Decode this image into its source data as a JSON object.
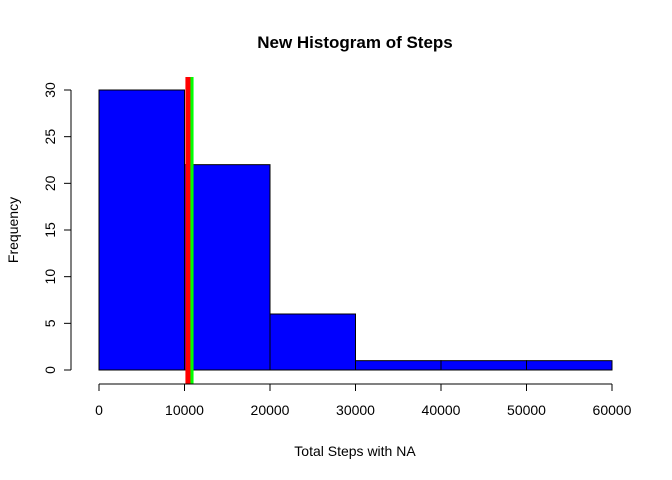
{
  "chart_data": {
    "type": "bar",
    "subtype": "histogram",
    "title": "New Histogram of Steps",
    "xlabel": "Total Steps with NA",
    "ylabel": "Frequency",
    "bins": [
      {
        "from": 0,
        "to": 10000,
        "count": 30
      },
      {
        "from": 10000,
        "to": 20000,
        "count": 22
      },
      {
        "from": 20000,
        "to": 30000,
        "count": 6
      },
      {
        "from": 30000,
        "to": 40000,
        "count": 1
      },
      {
        "from": 40000,
        "to": 50000,
        "count": 1
      },
      {
        "from": 50000,
        "to": 60000,
        "count": 1
      }
    ],
    "xlim": [
      0,
      60000
    ],
    "ylim": [
      0,
      30
    ],
    "x_ticks": [
      0,
      10000,
      20000,
      30000,
      40000,
      50000,
      60000
    ],
    "y_ticks": [
      0,
      5,
      10,
      15,
      20,
      25,
      30
    ],
    "bar_color": "#0000FF",
    "reference_lines": [
      {
        "x": 10766,
        "color": "#00FF00"
      },
      {
        "x": 10400,
        "color": "#FF0000"
      }
    ],
    "grid": false
  }
}
